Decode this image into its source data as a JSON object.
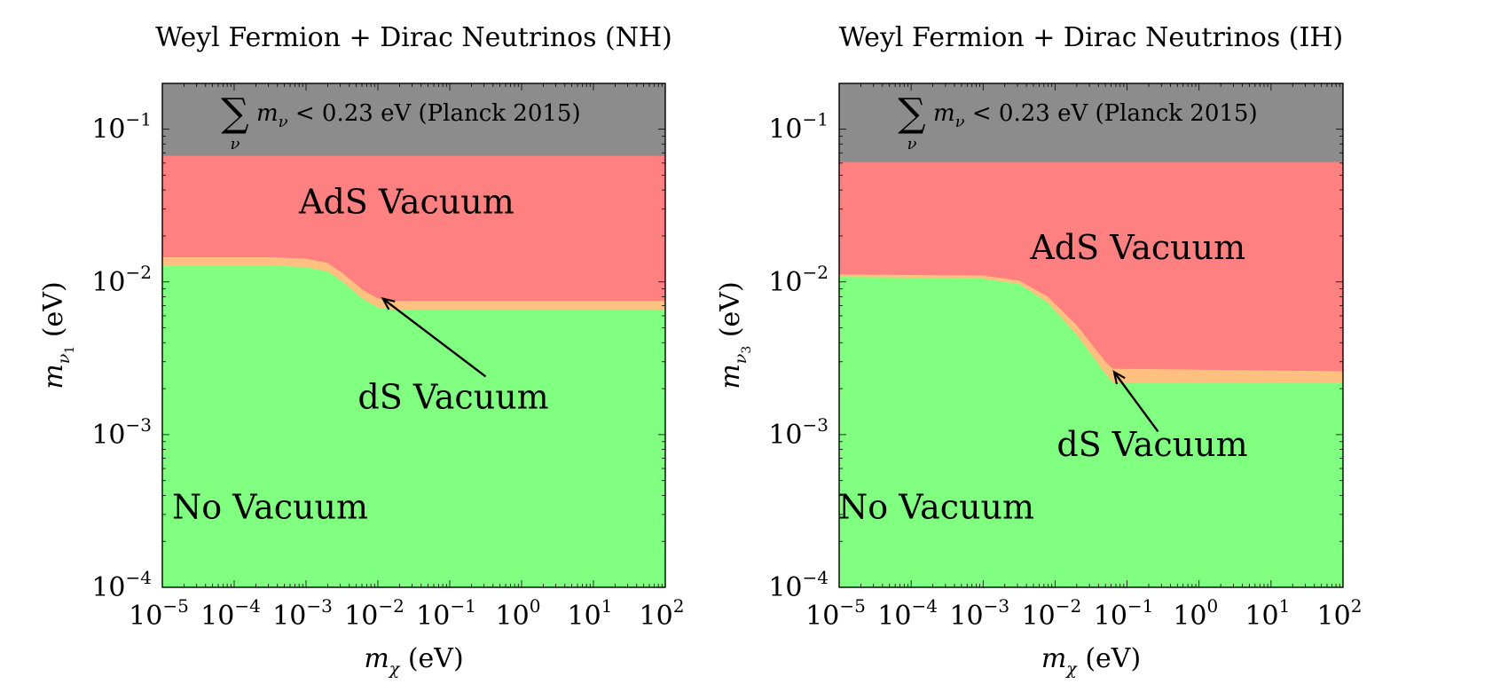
{
  "figure": {
    "description_panels": 2
  },
  "colors": {
    "excluded": "#8c8c8c",
    "ads": "#ff8080",
    "ds": "#ffc080",
    "no_vacuum": "#80ff80",
    "frame": "#000000"
  },
  "chart_data": [
    {
      "type": "area",
      "title": "Weyl Fermion + Dirac Neutrinos (NH)",
      "xlabel": {
        "symbol": "m",
        "sub": "χ",
        "unit": "(eV)"
      },
      "ylabel": {
        "symbol": "m",
        "sub": "ν",
        "subsub": "1",
        "unit": "(eV)"
      },
      "x_scale": "log",
      "y_scale": "log",
      "xlim_log10": [
        -5,
        2
      ],
      "ylim_log10": [
        -4,
        -0.7
      ],
      "x_tick_exponents": [
        -5,
        -4,
        -3,
        -2,
        -1,
        0,
        1,
        2
      ],
      "y_tick_exponents": [
        -4,
        -3,
        -2,
        -1
      ],
      "planck_bound_eV": 0.067,
      "constraint_text": {
        "symbol": "m",
        "sub": "ν",
        "relation": "< 0.23 eV (Planck 2015)"
      },
      "ds_upper_log10x": [
        -5,
        -3.5,
        -3,
        -2.7,
        -2.5,
        -2.2,
        -2,
        -1.8,
        2
      ],
      "ds_upper_eV": [
        0.0145,
        0.0145,
        0.0142,
        0.0133,
        0.0115,
        0.0088,
        0.0078,
        0.0075,
        0.0075
      ],
      "ds_lower_log10x": [
        -5,
        -3.5,
        -3,
        -2.7,
        -2.5,
        -2.2,
        -2,
        -1.8,
        2
      ],
      "ds_lower_eV": [
        0.0128,
        0.0128,
        0.0125,
        0.0117,
        0.0101,
        0.0077,
        0.0068,
        0.0066,
        0.0066
      ],
      "regions": [
        {
          "name": "Excluded",
          "label": "Σ m_ν < 0.23 eV (Planck 2015)"
        },
        {
          "name": "AdS",
          "label": "AdS Vacuum"
        },
        {
          "name": "dS",
          "label": "dS Vacuum"
        },
        {
          "name": "None",
          "label": "No Vacuum"
        }
      ],
      "labels": {
        "ads": "AdS Vacuum",
        "ds": "dS Vacuum",
        "none": "No Vacuum"
      },
      "label_positions": {
        "ads": {
          "x_log10": -1.6,
          "y_log10": -1.55
        },
        "ds": {
          "x_log10": -0.95,
          "y_log10": -2.83
        },
        "none": {
          "x_log10": -3.5,
          "y_log10": -3.55
        }
      },
      "arrow": {
        "from": {
          "x_log10": -0.5,
          "y_log10": -2.62
        },
        "to": {
          "x_log10": -1.93,
          "y_log10": -2.11
        }
      }
    },
    {
      "type": "area",
      "title": "Weyl Fermion + Dirac Neutrinos (IH)",
      "xlabel": {
        "symbol": "m",
        "sub": "χ",
        "unit": "(eV)"
      },
      "ylabel": {
        "symbol": "m",
        "sub": "ν",
        "subsub": "3",
        "unit": "(eV)"
      },
      "x_scale": "log",
      "y_scale": "log",
      "xlim_log10": [
        -5,
        2
      ],
      "ylim_log10": [
        -4,
        -0.7
      ],
      "x_tick_exponents": [
        -5,
        -4,
        -3,
        -2,
        -1,
        0,
        1,
        2
      ],
      "y_tick_exponents": [
        -4,
        -3,
        -2,
        -1
      ],
      "planck_bound_eV": 0.061,
      "constraint_text": {
        "symbol": "m",
        "sub": "ν",
        "relation": "< 0.23 eV (Planck 2015)"
      },
      "ds_upper_log10x": [
        -5,
        -3,
        -2.5,
        -2.1,
        -1.7,
        -1.3,
        -1.2,
        2
      ],
      "ds_upper_eV": [
        0.0112,
        0.011,
        0.0102,
        0.008,
        0.0052,
        0.003,
        0.0027,
        0.0026
      ],
      "ds_lower_log10x": [
        -5,
        -3,
        -2.5,
        -2.1,
        -1.7,
        -1.3,
        -1.2,
        2
      ],
      "ds_lower_eV": [
        0.0108,
        0.0105,
        0.0097,
        0.0073,
        0.0045,
        0.0025,
        0.0022,
        0.0022
      ],
      "regions": [
        {
          "name": "Excluded",
          "label": "Σ m_ν < 0.23 eV (Planck 2015)"
        },
        {
          "name": "AdS",
          "label": "AdS Vacuum"
        },
        {
          "name": "dS",
          "label": "dS Vacuum"
        },
        {
          "name": "None",
          "label": "No Vacuum"
        }
      ],
      "labels": {
        "ads": "AdS Vacuum",
        "ds": "dS Vacuum",
        "none": "No Vacuum"
      },
      "label_positions": {
        "ads": {
          "x_log10": -0.85,
          "y_log10": -1.85
        },
        "ds": {
          "x_log10": -0.65,
          "y_log10": -3.14
        },
        "none": {
          "x_log10": -3.65,
          "y_log10": -3.55
        }
      },
      "arrow": {
        "from": {
          "x_log10": -0.57,
          "y_log10": -2.98
        },
        "to": {
          "x_log10": -1.18,
          "y_log10": -2.59
        }
      }
    }
  ]
}
